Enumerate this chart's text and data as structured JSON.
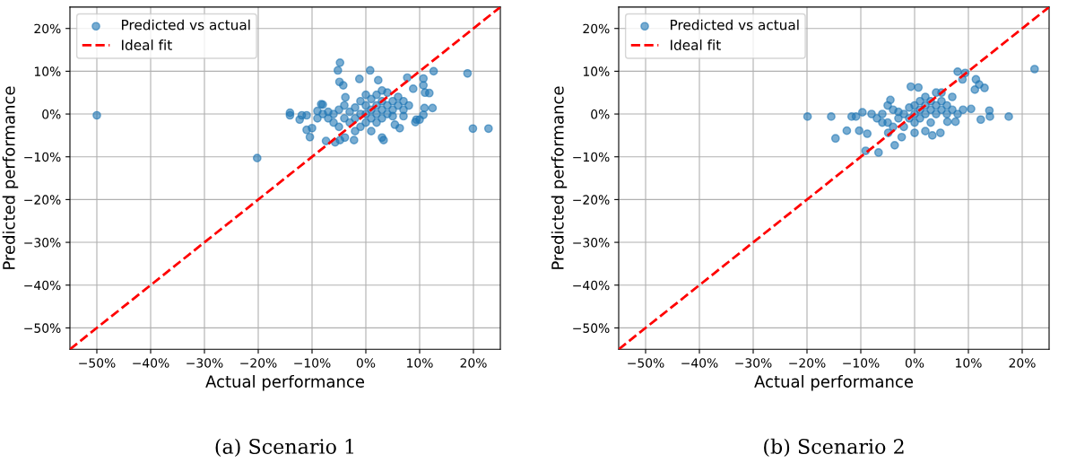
{
  "chart_data": [
    {
      "type": "scatter",
      "xlabel": "Actual performance",
      "ylabel": "Predicted performance",
      "annotations": [
        "(a) Scenario 1"
      ],
      "xlim": [
        -55,
        25
      ],
      "ylim": [
        -55,
        25
      ],
      "xticks": [
        {
          "value": -50,
          "label": "−50%"
        },
        {
          "value": -40,
          "label": "−40%"
        },
        {
          "value": -30,
          "label": "−30%"
        },
        {
          "value": -20,
          "label": "−20%"
        },
        {
          "value": -10,
          "label": "−10%"
        },
        {
          "value": 0,
          "label": "0%"
        },
        {
          "value": 10,
          "label": "10%"
        },
        {
          "value": 20,
          "label": "20%"
        }
      ],
      "yticks": [
        {
          "value": -50,
          "label": "−50%"
        },
        {
          "value": -40,
          "label": "−40%"
        },
        {
          "value": -30,
          "label": "−30%"
        },
        {
          "value": -20,
          "label": "−20%"
        },
        {
          "value": -10,
          "label": "−10%"
        },
        {
          "value": 0,
          "label": "0%"
        },
        {
          "value": 10,
          "label": "10%"
        },
        {
          "value": 20,
          "label": "20%"
        }
      ],
      "grid": true,
      "legend": "top left",
      "series": [
        {
          "name": "Predicted vs actual",
          "color": "#1f77b4",
          "marker": "circle",
          "x": [
            -50,
            -20.2,
            -14.1,
            -14.1,
            -12.3,
            -11.9,
            -11,
            -11,
            -10,
            -10.4,
            -9,
            -8.3,
            -8,
            -7.4,
            -5.7,
            -4.8,
            -3.9,
            -2.2,
            -4.8,
            -5.2,
            -4.9,
            -4.2,
            -3.8,
            -1.2,
            0.8,
            2.3,
            3.3,
            3,
            5.4,
            6.3,
            7.7,
            8.8,
            10.7,
            10.7,
            11,
            11.8,
            12.6,
            12.4,
            10.9,
            10.7,
            9.4,
            9.2,
            10,
            18.9,
            19.9,
            22.8,
            -6,
            -5,
            -4,
            -3,
            -3,
            -2,
            -2,
            -1,
            -1,
            -1,
            0,
            0,
            0,
            0,
            1,
            1,
            1,
            2,
            2,
            2,
            2,
            3,
            3,
            3,
            4,
            4,
            4,
            5,
            5,
            5,
            6,
            6,
            7,
            7,
            7,
            8,
            -7,
            -7,
            -5,
            -4,
            -6,
            -2,
            1,
            3,
            -8,
            -9
          ],
          "values": [
            -0.3,
            -10.3,
            0.3,
            -0.3,
            -1.3,
            -0.3,
            -0.3,
            -3.7,
            -3.3,
            -5.4,
            0.7,
            2.3,
            2.2,
            -6.3,
            -6.6,
            -6.1,
            -5.5,
            -6.1,
            12,
            10.2,
            7.5,
            6.7,
            3.9,
            8.2,
            10.2,
            7.9,
            -6.1,
            -5.5,
            -2.5,
            -3.3,
            8.5,
            5.9,
            8.3,
            6.7,
            5,
            4.9,
            10,
            1.4,
            1.4,
            -0.2,
            -1.3,
            -1.9,
            -1.3,
            9.5,
            -3.4,
            -3.4,
            0,
            1,
            -1,
            0.5,
            -2,
            1.5,
            -1,
            0,
            3,
            -3,
            0,
            2,
            -2,
            4.5,
            1,
            -1,
            3.5,
            0,
            2,
            -2,
            4.5,
            1,
            3,
            -1,
            2,
            0,
            5,
            1,
            3,
            -0.5,
            2,
            4,
            1,
            3,
            -0.5,
            2,
            -1,
            0.5,
            -3,
            2,
            -2,
            -4,
            -4,
            5.5,
            0,
            -1
          ]
        },
        {
          "name": "Ideal fit",
          "type": "line",
          "color": "#ff0000",
          "line_style": "dashed",
          "marker": "none",
          "x": [
            -55,
            25
          ],
          "values": [
            -55,
            25
          ]
        }
      ]
    },
    {
      "type": "scatter",
      "xlabel": "Actual performance",
      "ylabel": "Predicted performance",
      "annotations": [
        "(b) Scenario 2"
      ],
      "xlim": [
        -55,
        25
      ],
      "ylim": [
        -55,
        25
      ],
      "xticks": [
        {
          "value": -50,
          "label": "−50%"
        },
        {
          "value": -40,
          "label": "−40%"
        },
        {
          "value": -30,
          "label": "−30%"
        },
        {
          "value": -20,
          "label": "−20%"
        },
        {
          "value": -10,
          "label": "−10%"
        },
        {
          "value": 0,
          "label": "0%"
        },
        {
          "value": 10,
          "label": "10%"
        },
        {
          "value": 20,
          "label": "20%"
        }
      ],
      "yticks": [
        {
          "value": -50,
          "label": "−50%"
        },
        {
          "value": -40,
          "label": "−40%"
        },
        {
          "value": -30,
          "label": "−30%"
        },
        {
          "value": -20,
          "label": "−20%"
        },
        {
          "value": -10,
          "label": "−10%"
        },
        {
          "value": 0,
          "label": "0%"
        },
        {
          "value": 10,
          "label": "10%"
        },
        {
          "value": 20,
          "label": "20%"
        }
      ],
      "grid": true,
      "legend": "top left",
      "series": [
        {
          "name": "Predicted vs actual",
          "color": "#1f77b4",
          "marker": "circle",
          "x": [
            -19.9,
            -15.5,
            -11.7,
            -10.9,
            -12.6,
            -14.7,
            -10.3,
            -8.8,
            -9.1,
            -6.7,
            -3.7,
            -9.7,
            -4.5,
            -0.7,
            8,
            9.4,
            11.4,
            12,
            13,
            11.2,
            8.9,
            13.9,
            14,
            17.5,
            12.3,
            22.3,
            3.3,
            4.8,
            6.1,
            7.6,
            10.5,
            0.7,
            -4.9,
            -2.4,
            0,
            -7,
            -6,
            -5,
            -4,
            -3,
            -3,
            -2,
            -2,
            -1,
            -1,
            0,
            0,
            0,
            1,
            1,
            1,
            2,
            2,
            2,
            3,
            3,
            3,
            4,
            4,
            4,
            5,
            5,
            6,
            6,
            7,
            7,
            8,
            9,
            -8,
            -6,
            -5,
            -4,
            2,
            5
          ],
          "values": [
            -0.6,
            -0.6,
            -0.6,
            -0.6,
            -3.9,
            -5.7,
            -3.9,
            -4.6,
            -8.6,
            -9,
            -7.3,
            0.4,
            3.3,
            6.4,
            9.9,
            9.6,
            8.1,
            6.9,
            6.1,
            5.7,
            8.1,
            0.8,
            -0.6,
            -0.6,
            -1.3,
            10.5,
            -5,
            -4.4,
            -1.8,
            -1.8,
            1.2,
            6.2,
            -4.4,
            -5.4,
            -4.4,
            -1,
            0,
            -2,
            1,
            -1,
            0.5,
            0,
            -3,
            1.5,
            -1,
            0,
            2,
            -2,
            1,
            3,
            -1,
            0,
            2,
            4,
            1,
            3,
            -2,
            0,
            2,
            5,
            1,
            3,
            0,
            2,
            1,
            4,
            0,
            1,
            0,
            -2,
            2,
            -3,
            -4,
            5
          ]
        },
        {
          "name": "Ideal fit",
          "type": "line",
          "color": "#ff0000",
          "line_style": "dashed",
          "marker": "none",
          "x": [
            -55,
            25
          ],
          "values": [
            -55,
            25
          ]
        }
      ]
    }
  ]
}
